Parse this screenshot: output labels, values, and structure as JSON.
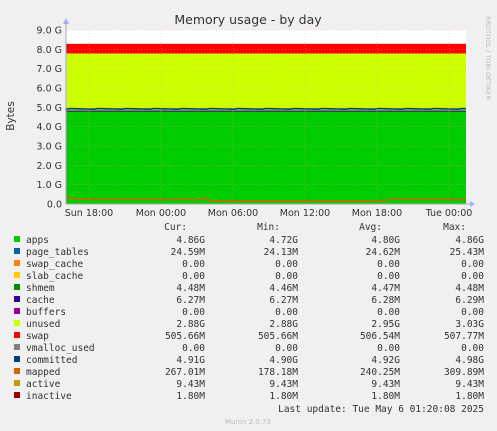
{
  "chart_data": {
    "type": "area",
    "title": "Memory usage - by day",
    "ylabel": "Bytes",
    "ylim": [
      0,
      9.0
    ],
    "yunit": "G",
    "yticks": [
      "0.0",
      "1.0 G",
      "2.0 G",
      "3.0 G",
      "4.0 G",
      "5.0 G",
      "6.0 G",
      "7.0 G",
      "8.0 G",
      "9.0 G"
    ],
    "xticks": [
      "Sun 18:00",
      "Mon 00:00",
      "Mon 06:00",
      "Mon 12:00",
      "Mon 18:00",
      "Tue 00:00"
    ],
    "grid": true,
    "side_label": "RRDTOOL / TOBI OETIKER",
    "stack": [
      {
        "name": "apps",
        "color": "#00cc00",
        "value_g": 4.8
      },
      {
        "name": "page_tables",
        "color": "#0066b3",
        "value_g": 0.025
      },
      {
        "name": "shmem",
        "color": "#008f00",
        "value_g": 0.0045
      },
      {
        "name": "cache",
        "color": "#330099",
        "value_g": 0.0063
      },
      {
        "name": "committed_line",
        "color": "#00457a",
        "value_g": 4.92
      },
      {
        "name": "unused",
        "color": "#ccff00",
        "value_g": 2.95
      },
      {
        "name": "swap",
        "color": "#ff0000",
        "value_g": 0.5
      }
    ],
    "mapped_line_g": 0.24
  },
  "legend": {
    "headers": [
      "Cur:",
      "Min:",
      "Avg:",
      "Max:"
    ],
    "rows": [
      {
        "name": "apps",
        "color": "#00cc00",
        "cur": "4.86G",
        "min": "4.72G",
        "avg": "4.80G",
        "max": "4.86G"
      },
      {
        "name": "page_tables",
        "color": "#0066b3",
        "cur": "24.59M",
        "min": "24.13M",
        "avg": "24.62M",
        "max": "25.43M"
      },
      {
        "name": "swap_cache",
        "color": "#ff8000",
        "cur": "0.00",
        "min": "0.00",
        "avg": "0.00",
        "max": "0.00"
      },
      {
        "name": "slab_cache",
        "color": "#ffcc00",
        "cur": "0.00",
        "min": "0.00",
        "avg": "0.00",
        "max": "0.00"
      },
      {
        "name": "shmem",
        "color": "#008f00",
        "cur": "4.48M",
        "min": "4.46M",
        "avg": "4.47M",
        "max": "4.48M"
      },
      {
        "name": "cache",
        "color": "#330099",
        "cur": "6.27M",
        "min": "6.27M",
        "avg": "6.28M",
        "max": "6.29M"
      },
      {
        "name": "buffers",
        "color": "#990099",
        "cur": "0.00",
        "min": "0.00",
        "avg": "0.00",
        "max": "0.00"
      },
      {
        "name": "unused",
        "color": "#ccff00",
        "cur": "2.88G",
        "min": "2.88G",
        "avg": "2.95G",
        "max": "3.03G"
      },
      {
        "name": "swap",
        "color": "#ff0000",
        "cur": "505.66M",
        "min": "505.66M",
        "avg": "506.54M",
        "max": "507.77M"
      },
      {
        "name": "vmalloc_used",
        "color": "#808080",
        "cur": "0.00",
        "min": "0.00",
        "avg": "0.00",
        "max": "0.00"
      },
      {
        "name": "committed",
        "color": "#00457a",
        "cur": "4.91G",
        "min": "4.90G",
        "avg": "4.92G",
        "max": "4.98G"
      },
      {
        "name": "mapped",
        "color": "#cc6600",
        "cur": "267.01M",
        "min": "178.18M",
        "avg": "240.25M",
        "max": "309.89M"
      },
      {
        "name": "active",
        "color": "#c49a00",
        "cur": "9.43M",
        "min": "9.43M",
        "avg": "9.43M",
        "max": "9.43M"
      },
      {
        "name": "inactive",
        "color": "#990000",
        "cur": "1.80M",
        "min": "1.80M",
        "avg": "1.80M",
        "max": "1.80M"
      }
    ],
    "last_update": "Last update: Tue May  6 01:20:08 2025",
    "footer": "Munin 2.0.73"
  }
}
